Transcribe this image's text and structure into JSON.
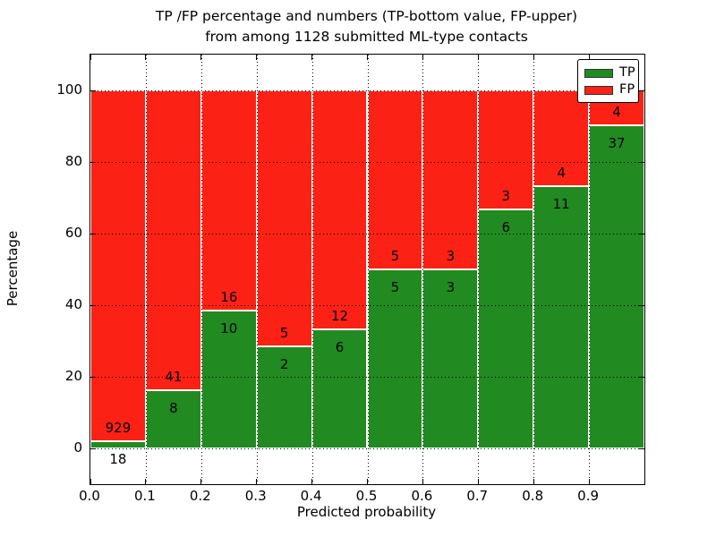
{
  "title": {
    "line1": "TP /FP percentage and numbers (TP-bottom value, FP-upper)",
    "line2": "from among 1128 submitted ML-type contacts"
  },
  "y_axis": {
    "label": "Percentage",
    "ticks": [
      0,
      20,
      40,
      60,
      80,
      100
    ]
  },
  "x_axis": {
    "label": "Predicted probability",
    "ticks": [
      "0.0",
      "0.1",
      "0.2",
      "0.3",
      "0.4",
      "0.5",
      "0.6",
      "0.7",
      "0.8",
      "0.9"
    ]
  },
  "legend": {
    "position": "upper right",
    "items": [
      {
        "label": "TP",
        "color": "#218a21"
      },
      {
        "label": "FP",
        "color": "#fc2115"
      }
    ]
  },
  "chart_data": {
    "type": "bar",
    "stacked": true,
    "normalized": "each bin scaled to 100%",
    "title": "TP /FP percentage and numbers (TP-bottom value, FP-upper) from among 1128 submitted ML-type contacts",
    "xlabel": "Predicted probability",
    "ylabel": "Percentage",
    "ylim": [
      -10,
      110
    ],
    "grid": "dotted, both axes, drawn above bars",
    "legend_position": "upper right",
    "total_contacts": 1128,
    "bins": [
      "0.0-0.1",
      "0.1-0.2",
      "0.2-0.3",
      "0.3-0.4",
      "0.4-0.5",
      "0.5-0.6",
      "0.6-0.7",
      "0.7-0.8",
      "0.8-0.9",
      "0.9-1.0"
    ],
    "series": [
      {
        "name": "TP",
        "color": "#218a21",
        "counts": [
          18,
          8,
          10,
          2,
          6,
          5,
          3,
          6,
          11,
          37
        ],
        "percent": [
          1.9,
          16.33,
          38.46,
          28.57,
          33.33,
          50.0,
          50.0,
          66.67,
          73.33,
          90.24
        ]
      },
      {
        "name": "FP",
        "color": "#fc2115",
        "counts": [
          929,
          41,
          16,
          5,
          12,
          5,
          3,
          3,
          4,
          4
        ],
        "percent": [
          98.1,
          83.67,
          61.54,
          71.43,
          66.67,
          50.0,
          50.0,
          33.33,
          26.67,
          9.76
        ]
      }
    ]
  }
}
